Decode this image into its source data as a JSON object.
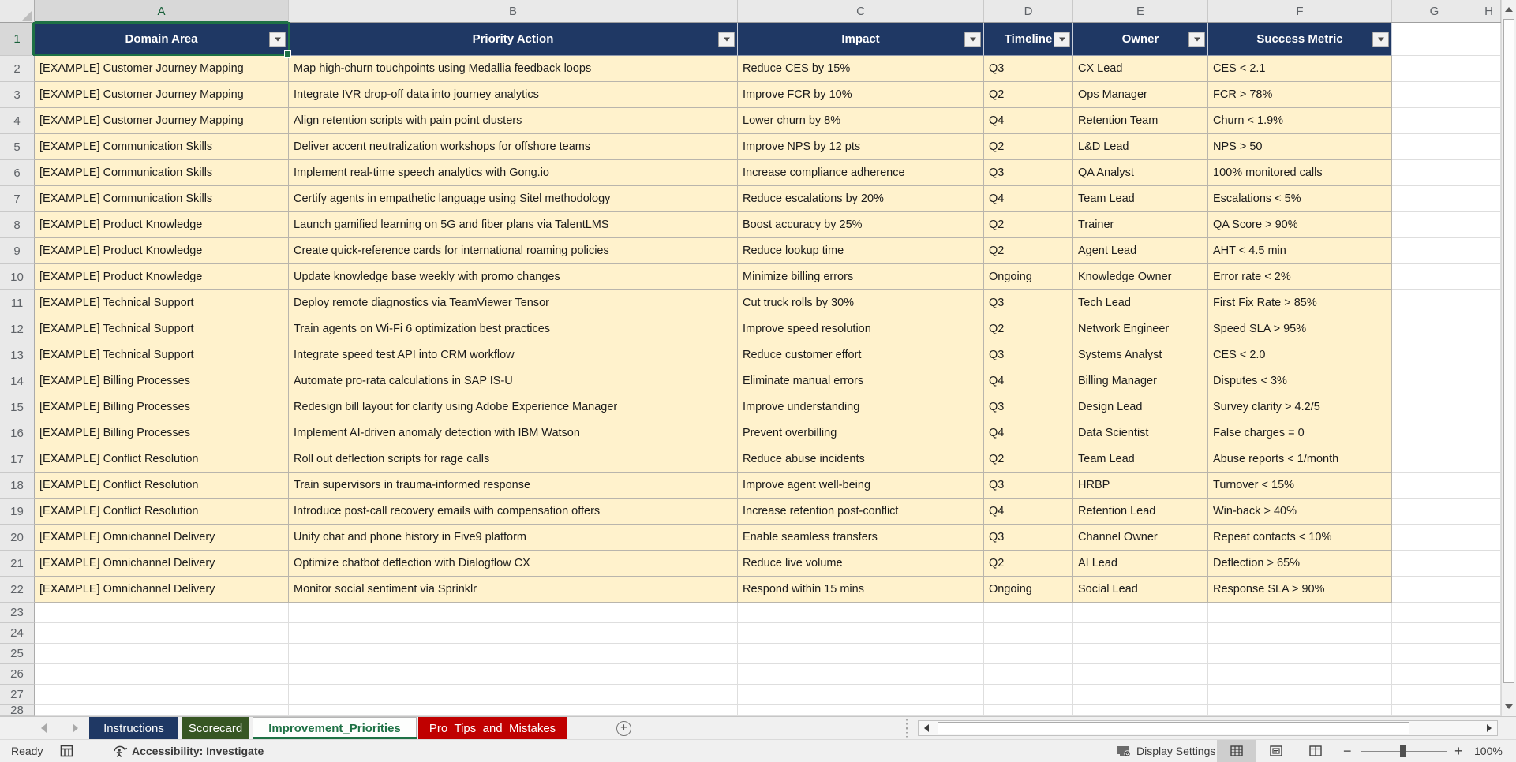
{
  "sheet": {
    "selection": {
      "active_cell": "A1"
    },
    "column_letters": [
      "A",
      "B",
      "C",
      "D",
      "E",
      "F",
      "G",
      "H"
    ],
    "row_numbers": [
      "1",
      "2",
      "3",
      "4",
      "5",
      "6",
      "7",
      "8",
      "9",
      "10",
      "11",
      "12",
      "13",
      "14",
      "15",
      "16",
      "17",
      "18",
      "19",
      "20",
      "21",
      "22",
      "23",
      "24",
      "25",
      "26",
      "27",
      "28"
    ],
    "table": {
      "headers": [
        "Domain Area",
        "Priority Action",
        "Impact",
        "Timeline",
        "Owner",
        "Success Metric"
      ],
      "rows": [
        [
          "[EXAMPLE] Customer Journey Mapping",
          "Map high-churn touchpoints using Medallia feedback loops",
          "Reduce CES by 15%",
          "Q3",
          "CX Lead",
          "CES < 2.1"
        ],
        [
          "[EXAMPLE] Customer Journey Mapping",
          "Integrate IVR drop-off data into journey analytics",
          "Improve FCR by 10%",
          "Q2",
          "Ops Manager",
          "FCR > 78%"
        ],
        [
          "[EXAMPLE] Customer Journey Mapping",
          "Align retention scripts with pain point clusters",
          "Lower churn by 8%",
          "Q4",
          "Retention Team",
          "Churn < 1.9%"
        ],
        [
          "[EXAMPLE] Communication Skills",
          "Deliver accent neutralization workshops for offshore teams",
          "Improve NPS by 12 pts",
          "Q2",
          "L&D Lead",
          "NPS > 50"
        ],
        [
          "[EXAMPLE] Communication Skills",
          "Implement real-time speech analytics with Gong.io",
          "Increase compliance adherence",
          "Q3",
          "QA Analyst",
          "100% monitored calls"
        ],
        [
          "[EXAMPLE] Communication Skills",
          "Certify agents in empathetic language using Sitel methodology",
          "Reduce escalations by 20%",
          "Q4",
          "Team Lead",
          "Escalations < 5%"
        ],
        [
          "[EXAMPLE] Product Knowledge",
          "Launch gamified learning on 5G and fiber plans via TalentLMS",
          "Boost accuracy by 25%",
          "Q2",
          "Trainer",
          "QA Score > 90%"
        ],
        [
          "[EXAMPLE] Product Knowledge",
          "Create quick-reference cards for international roaming policies",
          "Reduce lookup time",
          "Q2",
          "Agent Lead",
          "AHT < 4.5 min"
        ],
        [
          "[EXAMPLE] Product Knowledge",
          "Update knowledge base weekly with promo changes",
          "Minimize billing errors",
          "Ongoing",
          "Knowledge Owner",
          "Error rate < 2%"
        ],
        [
          "[EXAMPLE] Technical Support",
          "Deploy remote diagnostics via TeamViewer Tensor",
          "Cut truck rolls by 30%",
          "Q3",
          "Tech Lead",
          "First Fix Rate > 85%"
        ],
        [
          "[EXAMPLE] Technical Support",
          "Train agents on Wi-Fi 6 optimization best practices",
          "Improve speed resolution",
          "Q2",
          "Network Engineer",
          "Speed SLA > 95%"
        ],
        [
          "[EXAMPLE] Technical Support",
          "Integrate speed test API into CRM workflow",
          "Reduce customer effort",
          "Q3",
          "Systems Analyst",
          "CES < 2.0"
        ],
        [
          "[EXAMPLE] Billing Processes",
          "Automate pro-rata calculations in SAP IS-U",
          "Eliminate manual errors",
          "Q4",
          "Billing Manager",
          "Disputes < 3%"
        ],
        [
          "[EXAMPLE] Billing Processes",
          "Redesign bill layout for clarity using Adobe Experience Manager",
          "Improve understanding",
          "Q3",
          "Design Lead",
          "Survey clarity > 4.2/5"
        ],
        [
          "[EXAMPLE] Billing Processes",
          "Implement AI-driven anomaly detection with IBM Watson",
          "Prevent overbilling",
          "Q4",
          "Data Scientist",
          "False charges = 0"
        ],
        [
          "[EXAMPLE] Conflict Resolution",
          "Roll out deflection scripts for rage calls",
          "Reduce abuse incidents",
          "Q2",
          "Team Lead",
          "Abuse reports < 1/month"
        ],
        [
          "[EXAMPLE] Conflict Resolution",
          "Train supervisors in trauma-informed response",
          "Improve agent well-being",
          "Q3",
          "HRBP",
          "Turnover < 15%"
        ],
        [
          "[EXAMPLE] Conflict Resolution",
          "Introduce post-call recovery emails with compensation offers",
          "Increase retention post-conflict",
          "Q4",
          "Retention Lead",
          "Win-back > 40%"
        ],
        [
          "[EXAMPLE] Omnichannel Delivery",
          "Unify chat and phone history in Five9 platform",
          "Enable seamless transfers",
          "Q3",
          "Channel Owner",
          "Repeat contacts < 10%"
        ],
        [
          "[EXAMPLE] Omnichannel Delivery",
          "Optimize chatbot deflection with Dialogflow CX",
          "Reduce live volume",
          "Q2",
          "AI Lead",
          "Deflection > 65%"
        ],
        [
          "[EXAMPLE] Omnichannel Delivery",
          "Monitor social sentiment via Sprinklr",
          "Respond within 15 mins",
          "Ongoing",
          "Social Lead",
          "Response SLA > 90%"
        ]
      ]
    }
  },
  "tabs": [
    {
      "label": "Instructions",
      "color": "#1F3864",
      "active": false
    },
    {
      "label": "Scorecard",
      "color": "#375623",
      "active": false
    },
    {
      "label": "Improvement_Priorities",
      "color": "#FDFEFD",
      "active": true
    },
    {
      "label": "Pro_Tips_and_Mistakes",
      "color": "#C00000",
      "active": false
    }
  ],
  "tab_bar": {
    "add_sheet_glyph": "+"
  },
  "status_bar": {
    "ready_label": "Ready",
    "accessibility_label": "Accessibility: Investigate",
    "display_settings_label": "Display Settings",
    "zoom_out_glyph": "−",
    "zoom_in_glyph": "+",
    "zoom_level": "100%"
  },
  "icons": {
    "filter_dropdown": "▾",
    "scroll_up": "▲",
    "scroll_down": "▼",
    "scroll_left": "◀",
    "scroll_right": "▶",
    "tab_prev": "◀",
    "tab_next": "▶",
    "grip_dots": "⋮"
  },
  "colors": {
    "table_header_fill": "#1F3864",
    "table_row_fill": "#FFF2CC",
    "selection_green": "#1E7145",
    "tab_instructions": "#1F3864",
    "tab_scorecard": "#375623",
    "tab_pro_tips": "#C00000"
  }
}
